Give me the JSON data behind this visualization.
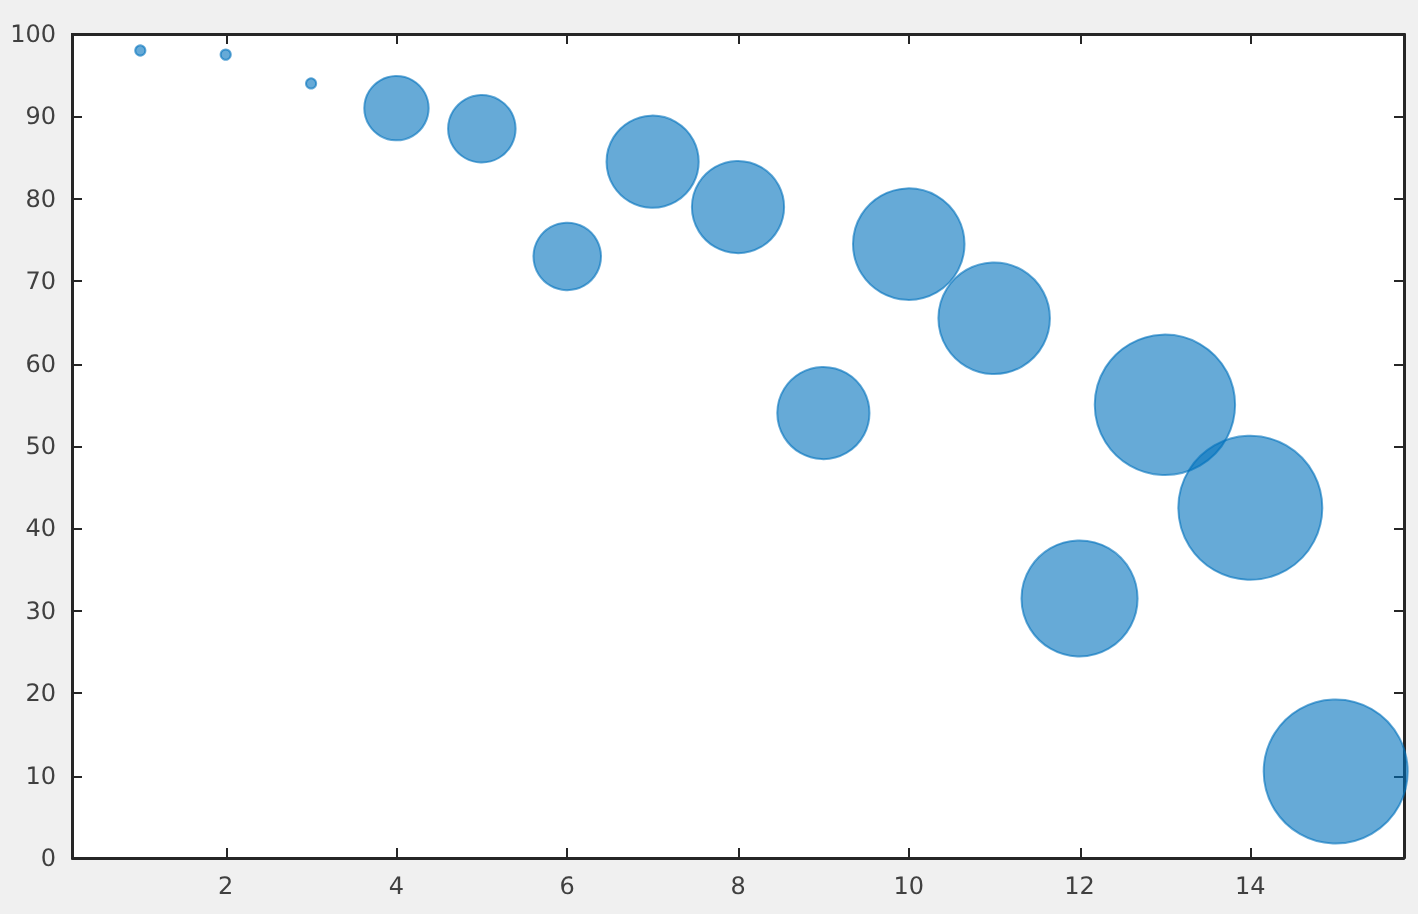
{
  "chart_data": {
    "type": "bubble",
    "x": [
      1,
      2,
      3,
      4,
      5,
      6,
      7,
      8,
      9,
      10,
      11,
      12,
      13,
      14,
      15
    ],
    "values": [
      98,
      97.5,
      94,
      91,
      88.5,
      73,
      84.5,
      79,
      54,
      74.5,
      65.5,
      31.5,
      55,
      42.5,
      10.5
    ],
    "sizes": [
      0.005,
      0.005,
      0.005,
      0.2,
      0.22,
      0.22,
      0.41,
      0.41,
      0.41,
      0.6,
      0.6,
      0.65,
      0.95,
      1,
      1
    ],
    "color": "#0072bd",
    "xlim": [
      0.2,
      15.8
    ],
    "xticks": [
      2,
      4,
      6,
      8,
      10,
      12,
      14
    ],
    "ylim": [
      0,
      100
    ],
    "yticks": [
      0,
      10,
      20,
      30,
      40,
      50,
      60,
      70,
      80,
      90,
      100
    ],
    "grid": false
  }
}
